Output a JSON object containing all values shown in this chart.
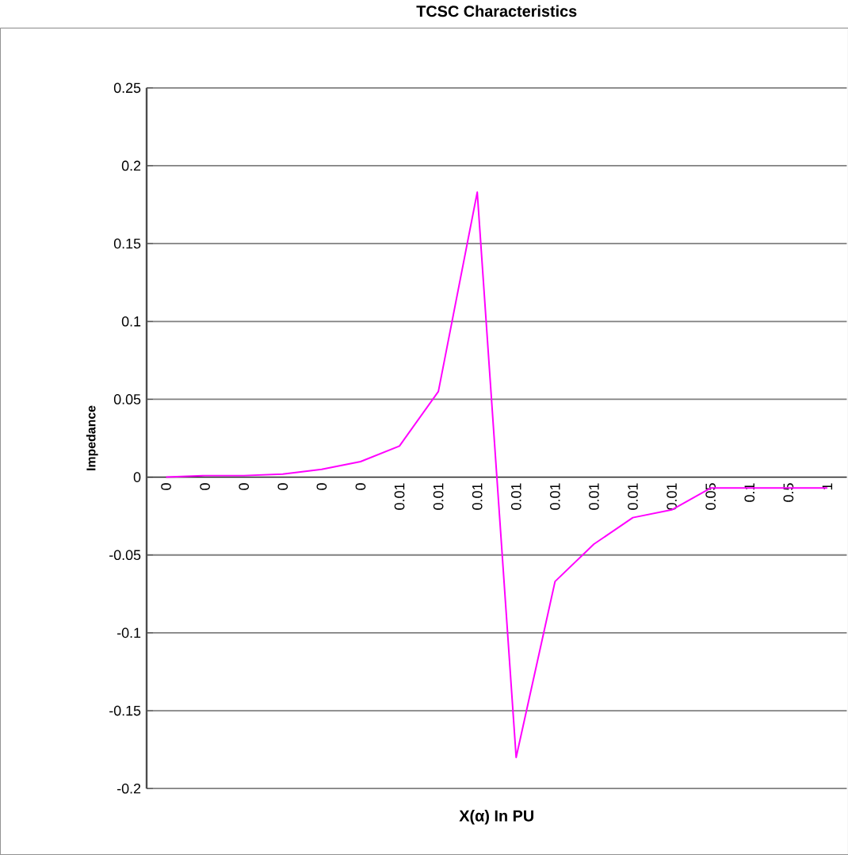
{
  "chart_data": {
    "type": "line",
    "title": "TCSC Characteristics",
    "xlabel": "X(α) In PU",
    "ylabel": "Impedance",
    "categories": [
      "0",
      "0",
      "0",
      "0",
      "0",
      "0",
      "0.01",
      "0.01",
      "0.01",
      "0.01",
      "0.01",
      "0.01",
      "0.01",
      "0.01",
      "0.05",
      "0.1",
      "0.5",
      "1"
    ],
    "series": [
      {
        "color": "#ff00ff",
        "values": [
          0,
          0.001,
          0.001,
          0.002,
          0.005,
          0.01,
          0.02,
          0.055,
          0.183,
          -0.18,
          -0.067,
          -0.043,
          -0.026,
          -0.021,
          -0.007,
          -0.007,
          -0.007,
          -0.007
        ]
      }
    ],
    "ylim": [
      -0.2,
      0.25
    ],
    "yticks": [
      -0.2,
      -0.15,
      -0.1,
      -0.05,
      0,
      0.05,
      0.1,
      0.15,
      0.2,
      0.25
    ],
    "grid": "y",
    "marker": "none",
    "line_style": "solid"
  }
}
